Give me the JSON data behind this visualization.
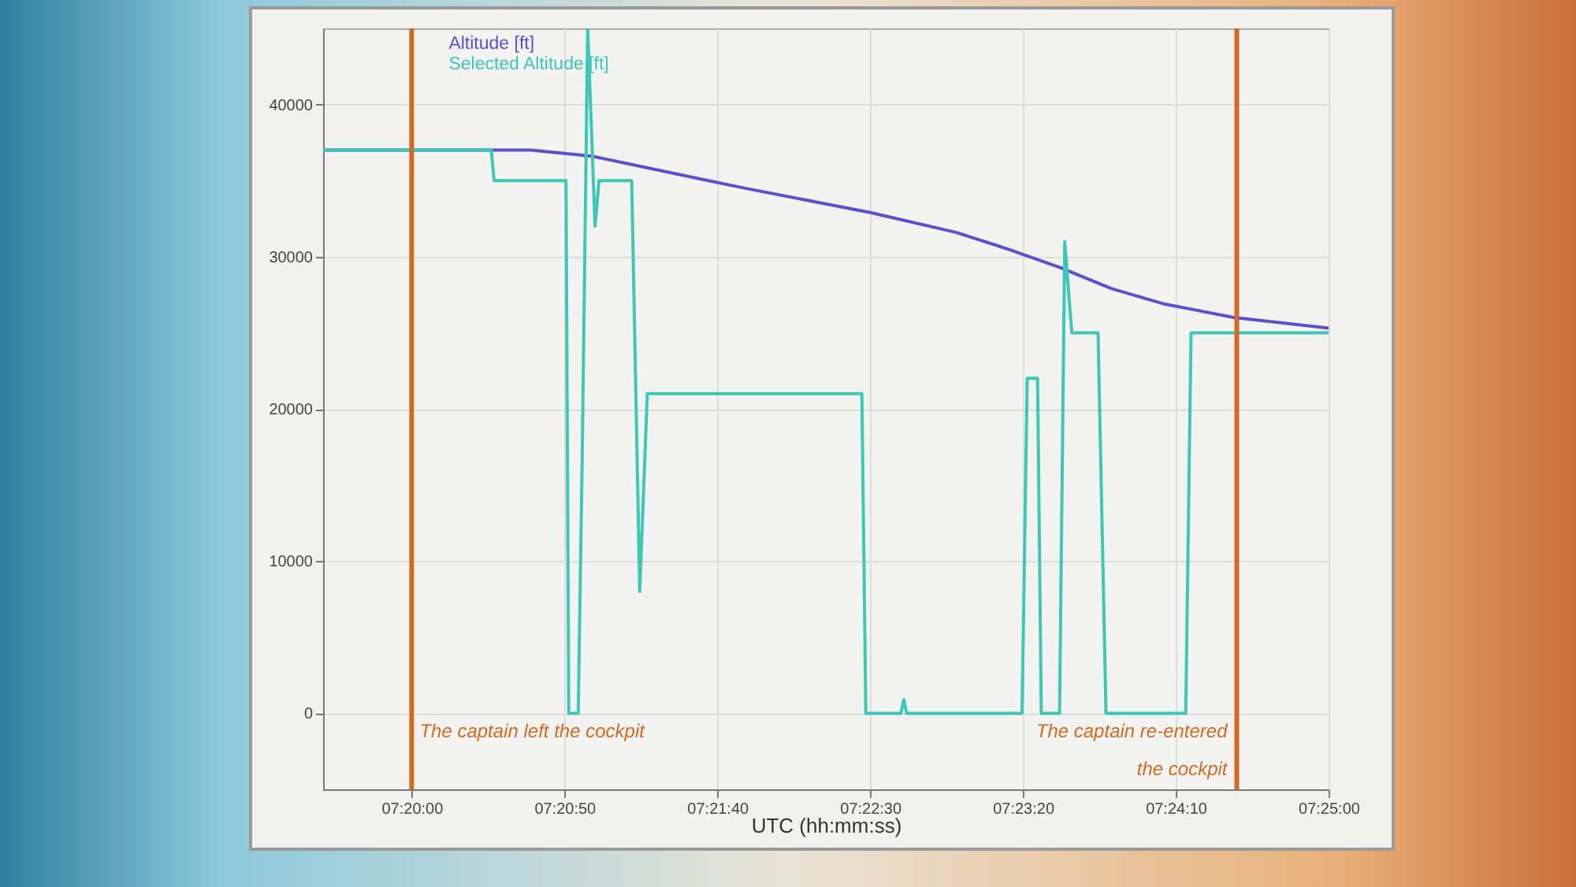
{
  "chart_data": {
    "type": "line",
    "xlabel": "UTC (hh:mm:ss)",
    "xlim": [
      7.32528,
      7.41667
    ],
    "xticks": [
      {
        "value": 7.33333,
        "label": "07:20:00"
      },
      {
        "value": 7.34722,
        "label": "07:20:50"
      },
      {
        "value": 7.36111,
        "label": "07:21:40"
      },
      {
        "value": 7.375,
        "label": "07:22:30"
      },
      {
        "value": 7.38889,
        "label": "07:23:20"
      },
      {
        "value": 7.40278,
        "label": "07:24:10"
      },
      {
        "value": 7.41667,
        "label": "07:25:00"
      }
    ],
    "ylim": [
      -5000,
      45000
    ],
    "yticks": [
      0,
      10000,
      20000,
      30000,
      40000
    ],
    "grid": true,
    "legend": "top left",
    "series": [
      {
        "name": "Altitude [ft]",
        "type": "line",
        "color": "#5a50d0",
        "x": [
          7.32528,
          7.34417,
          7.34972,
          7.36028,
          7.36361,
          7.375,
          7.38278,
          7.3875,
          7.39222,
          7.39694,
          7.40167,
          7.40806,
          7.41667
        ],
        "values": [
          37000,
          37000,
          36600,
          35000,
          34500,
          32900,
          31600,
          30500,
          29300,
          27900,
          26900,
          26000,
          25300
        ]
      },
      {
        "name": "Selected Altitude [ft]",
        "type": "line",
        "color": "#3cc8b4",
        "x": [
          7.32528,
          7.34056,
          7.34083,
          7.34736,
          7.34761,
          7.34847,
          7.34883,
          7.34933,
          7.35,
          7.35036,
          7.35333,
          7.35406,
          7.35475,
          7.37425,
          7.37461,
          7.37781,
          7.37806,
          7.37831,
          7.38881,
          7.38928,
          7.39022,
          7.39056,
          7.39222,
          7.39269,
          7.39333,
          7.39572,
          7.39644,
          7.40369,
          7.40417,
          7.41667
        ],
        "values": [
          37000,
          37000,
          35000,
          35000,
          0,
          0,
          16700,
          45000,
          32000,
          35000,
          35000,
          8000,
          21000,
          21000,
          0,
          0,
          900,
          0,
          0,
          22000,
          22000,
          0,
          0,
          31000,
          25000,
          25000,
          0,
          0,
          25000,
          25000
        ]
      }
    ],
    "ref_lines": [
      {
        "axis": "x",
        "value": 7.33333,
        "label": "The captain left the cockpit",
        "color": "#d4691f"
      },
      {
        "axis": "x",
        "value": 7.40833,
        "label": "The captain re-entered\nthe cockpit",
        "color": "#d4691f"
      }
    ]
  }
}
